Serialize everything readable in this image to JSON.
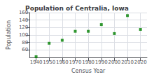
{
  "chart_data": {
    "type": "scatter",
    "title": "Population of Centralia, Iowa",
    "xlabel": "Census Year",
    "ylabel": "Population",
    "x": [
      1940,
      1950,
      1960,
      1970,
      1980,
      1990,
      2000,
      2010,
      2020
    ],
    "values": [
      42,
      78,
      86,
      110,
      110,
      128,
      104,
      152,
      115
    ],
    "color": "#008000",
    "marker": "square",
    "xlim": [
      1935,
      2025
    ],
    "ylim": [
      40,
      160
    ],
    "xticks": [
      1940,
      1950,
      1960,
      1970,
      1980,
      1990,
      2000,
      2010,
      2020
    ],
    "yticks": [
      60,
      80,
      100,
      120,
      140,
      160
    ],
    "grid": true
  }
}
